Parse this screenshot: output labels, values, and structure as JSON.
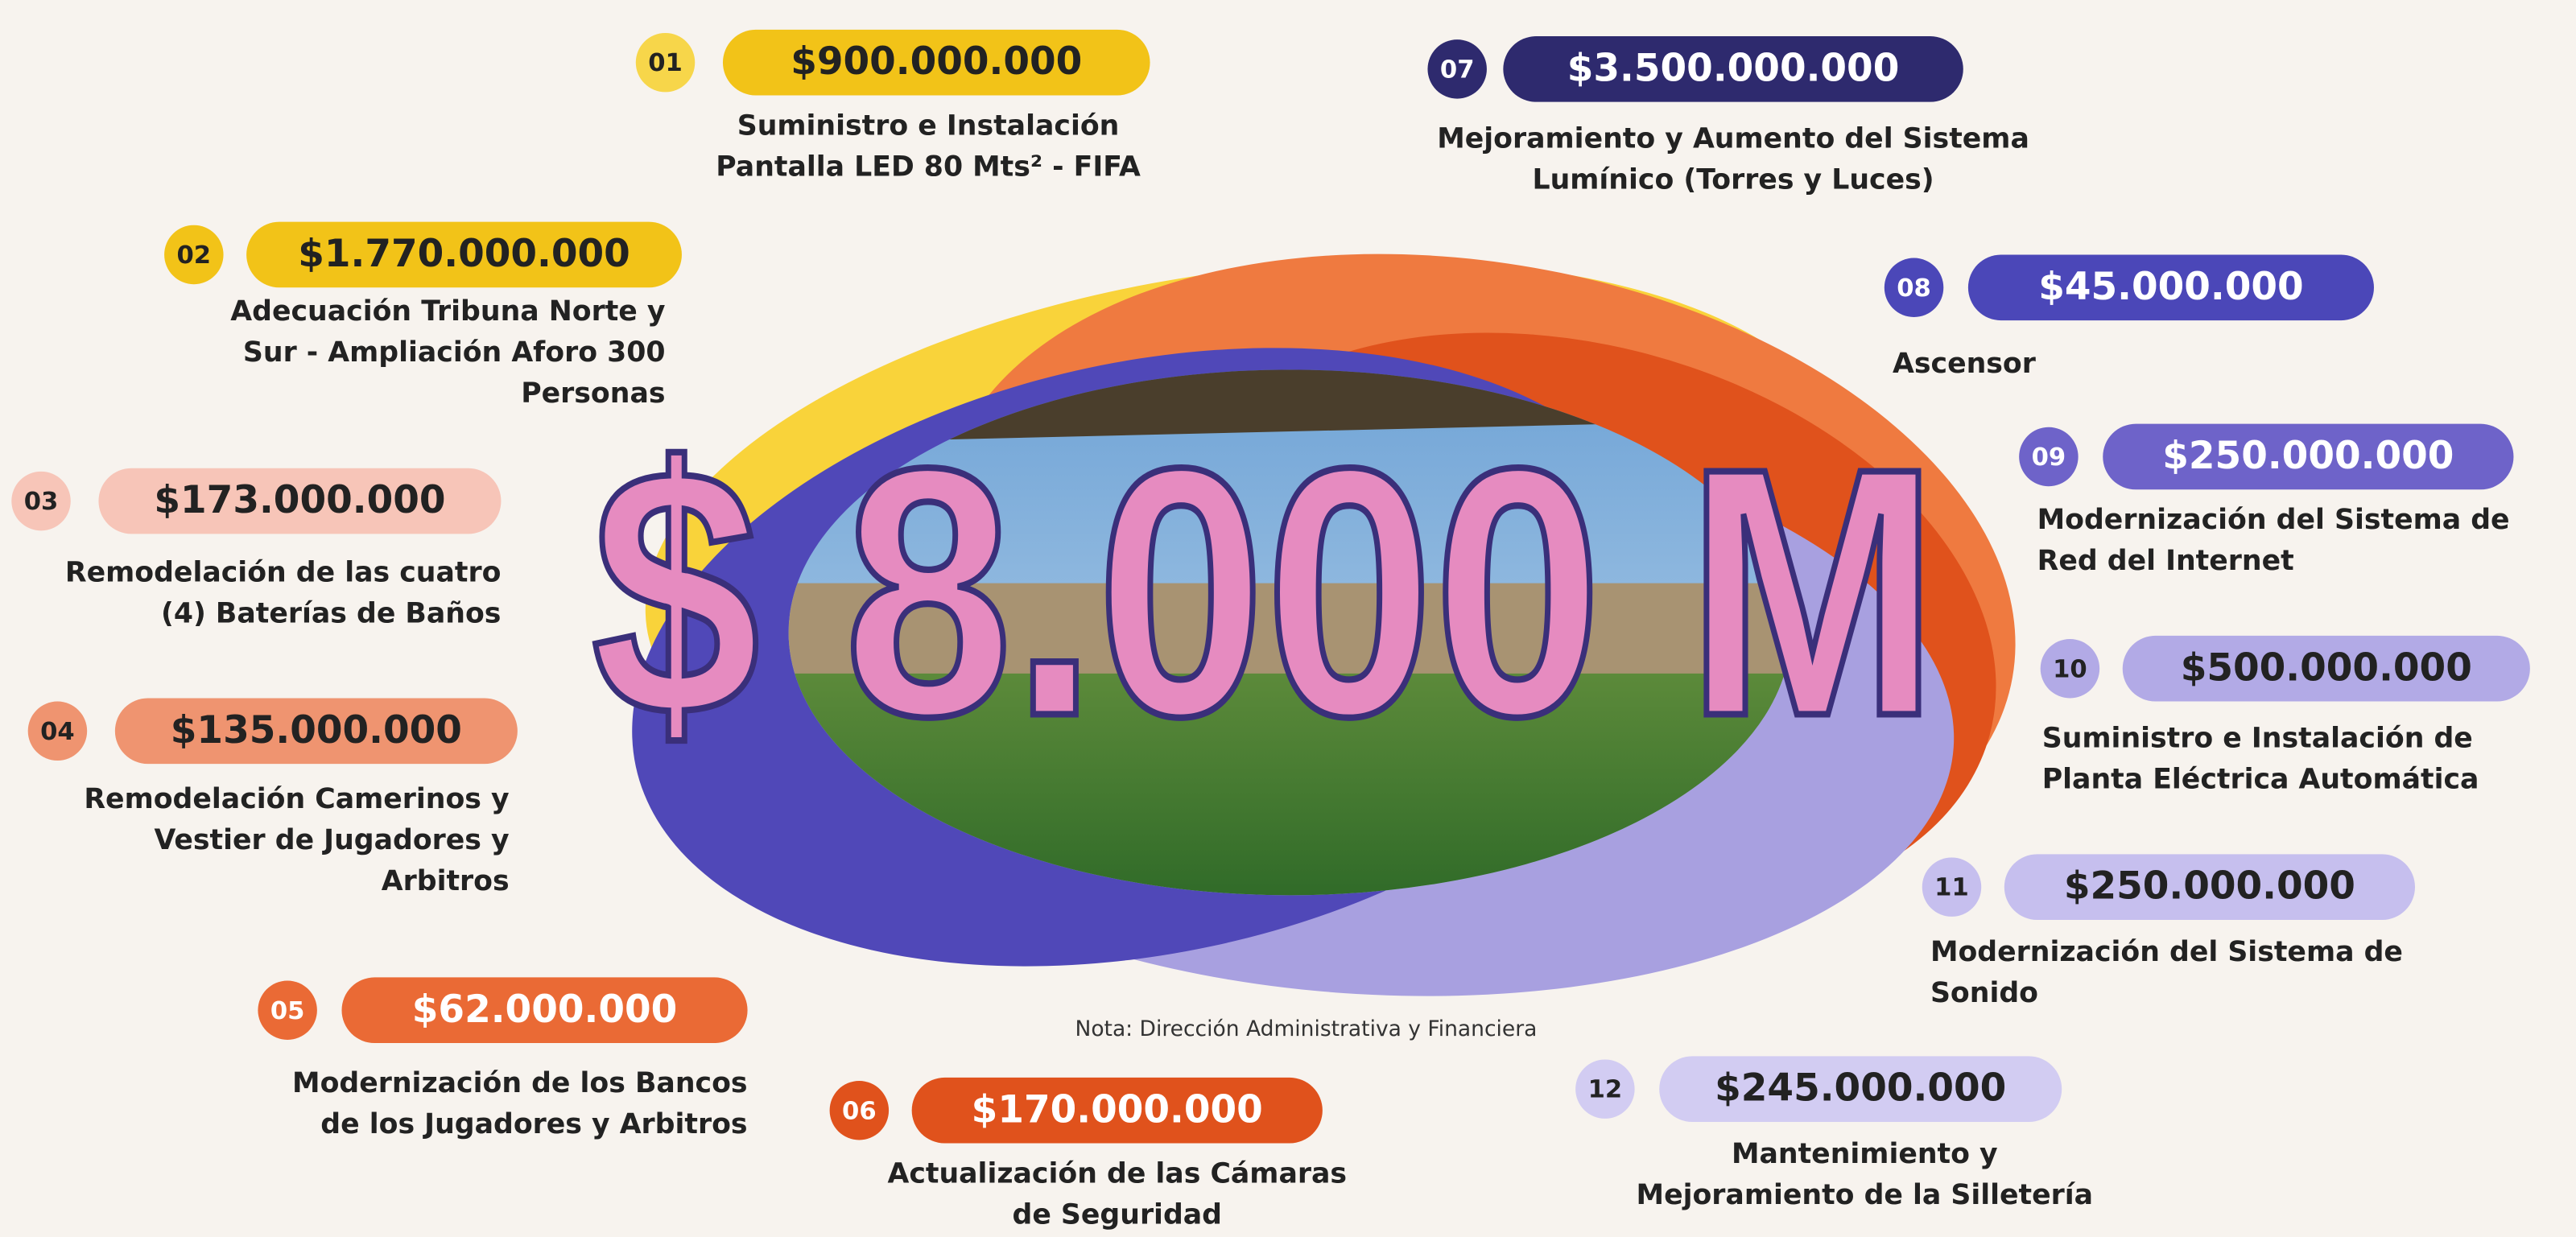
{
  "total": "$ 8.000 M",
  "note": "Nota:  Dirección Administrativa y Financiera",
  "items": [
    {
      "number": "01",
      "amount": "$900.000.000",
      "description": [
        "Suministro e Instalación",
        "Pantalla LED 80 Mts² - FIFA"
      ]
    },
    {
      "number": "02",
      "amount": "$1.770.000.000",
      "description": [
        "Adecuación Tribuna Norte y",
        "Sur - Ampliación Aforo 300",
        "Personas"
      ]
    },
    {
      "number": "03",
      "amount": "$173.000.000",
      "description": [
        "Remodelación de las cuatro",
        "(4) Baterías de Baños"
      ]
    },
    {
      "number": "04",
      "amount": "$135.000.000",
      "description": [
        "Remodelación Camerinos y",
        "Vestier de Jugadores y",
        "Arbitros"
      ]
    },
    {
      "number": "05",
      "amount": "$62.000.000",
      "description": [
        "Modernización de los Bancos",
        "de los Jugadores y Arbitros"
      ]
    },
    {
      "number": "06",
      "amount": "$170.000.000",
      "description": [
        "Actualización de las Cámaras",
        "de Seguridad"
      ]
    },
    {
      "number": "07",
      "amount": "$3.500.000.000",
      "description": [
        "Mejoramiento y Aumento del Sistema",
        "Lumínico (Torres y Luces)"
      ]
    },
    {
      "number": "08",
      "amount": "$45.000.000",
      "description": [
        "Ascensor"
      ]
    },
    {
      "number": "09",
      "amount": "$250.000.000",
      "description": [
        "Modernización del Sistema de",
        "Red del Internet"
      ]
    },
    {
      "number": "10",
      "amount": "$500.000.000",
      "description": [
        "Suministro e Instalación de",
        "Planta Eléctrica Automática"
      ]
    },
    {
      "number": "11",
      "amount": "$250.000.000",
      "description": [
        "Modernización del Sistema de",
        "Sonido"
      ]
    },
    {
      "number": "12",
      "amount": "$245.000.000",
      "description": [
        "Mantenimiento y",
        "Mejoramiento de la Silletería"
      ]
    }
  ]
}
